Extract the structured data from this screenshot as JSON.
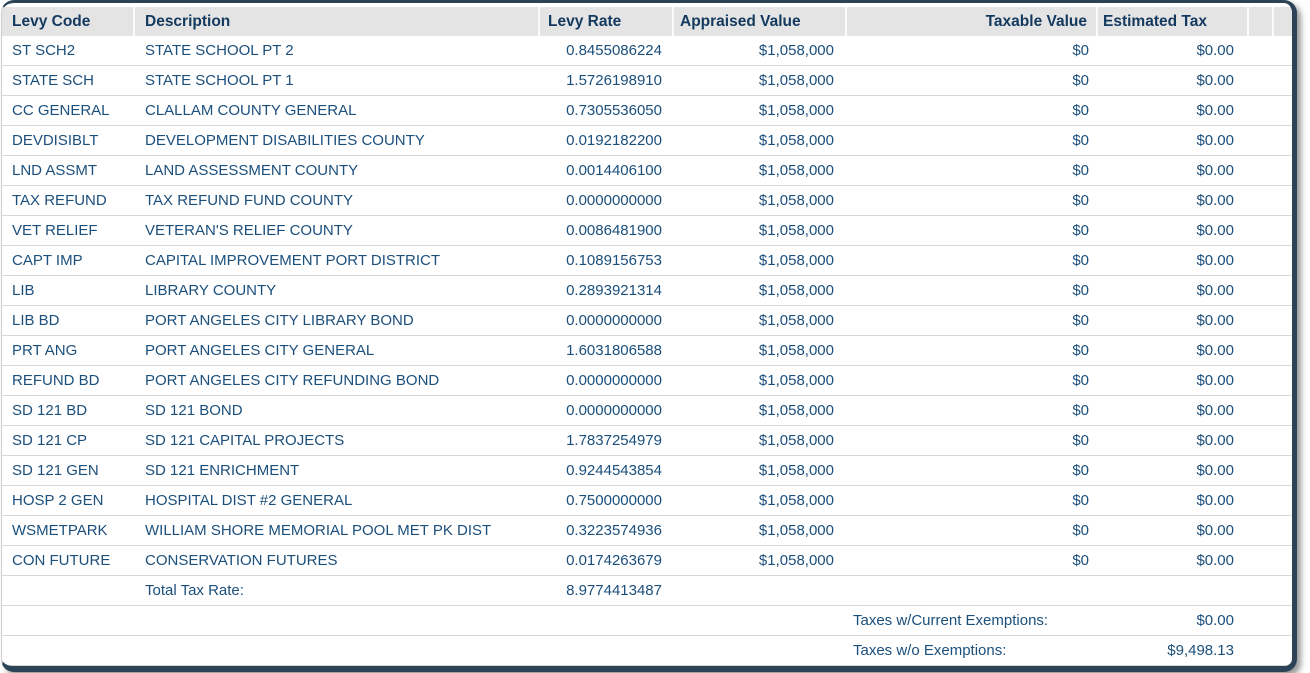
{
  "colors": {
    "panel_border": "#2c4257",
    "header_bg": "#e4e4e4",
    "header_text": "#14395f",
    "body_text": "#1b4f7c",
    "row_line": "#d8d8d8"
  },
  "table": {
    "headers": {
      "levy_code": "Levy Code",
      "description": "Description",
      "levy_rate": "Levy Rate",
      "appraised_value": "Appraised Value",
      "taxable_value": "Taxable Value",
      "estimated_tax": "Estimated Tax"
    },
    "rows": [
      {
        "code": "ST SCH2",
        "description": "STATE SCHOOL PT 2",
        "rate": "0.8455086224",
        "appraised": "$1,058,000",
        "taxable": "$0",
        "tax": "$0.00"
      },
      {
        "code": "STATE SCH",
        "description": "STATE SCHOOL PT 1",
        "rate": "1.5726198910",
        "appraised": "$1,058,000",
        "taxable": "$0",
        "tax": "$0.00"
      },
      {
        "code": "CC GENERAL",
        "description": "CLALLAM COUNTY GENERAL",
        "rate": "0.7305536050",
        "appraised": "$1,058,000",
        "taxable": "$0",
        "tax": "$0.00"
      },
      {
        "code": "DEVDISIBLT",
        "description": "DEVELOPMENT DISABILITIES COUNTY",
        "rate": "0.0192182200",
        "appraised": "$1,058,000",
        "taxable": "$0",
        "tax": "$0.00"
      },
      {
        "code": "LND ASSMT",
        "description": "LAND ASSESSMENT COUNTY",
        "rate": "0.0014406100",
        "appraised": "$1,058,000",
        "taxable": "$0",
        "tax": "$0.00"
      },
      {
        "code": "TAX REFUND",
        "description": "TAX REFUND FUND COUNTY",
        "rate": "0.0000000000",
        "appraised": "$1,058,000",
        "taxable": "$0",
        "tax": "$0.00"
      },
      {
        "code": "VET RELIEF",
        "description": "VETERAN'S RELIEF COUNTY",
        "rate": "0.0086481900",
        "appraised": "$1,058,000",
        "taxable": "$0",
        "tax": "$0.00"
      },
      {
        "code": "CAPT IMP",
        "description": "CAPITAL IMPROVEMENT PORT DISTRICT",
        "rate": "0.1089156753",
        "appraised": "$1,058,000",
        "taxable": "$0",
        "tax": "$0.00"
      },
      {
        "code": "LIB",
        "description": "LIBRARY COUNTY",
        "rate": "0.2893921314",
        "appraised": "$1,058,000",
        "taxable": "$0",
        "tax": "$0.00"
      },
      {
        "code": "LIB BD",
        "description": "PORT ANGELES CITY LIBRARY BOND",
        "rate": "0.0000000000",
        "appraised": "$1,058,000",
        "taxable": "$0",
        "tax": "$0.00"
      },
      {
        "code": "PRT ANG",
        "description": "PORT ANGELES CITY GENERAL",
        "rate": "1.6031806588",
        "appraised": "$1,058,000",
        "taxable": "$0",
        "tax": "$0.00"
      },
      {
        "code": "REFUND BD",
        "description": "PORT ANGELES CITY REFUNDING BOND",
        "rate": "0.0000000000",
        "appraised": "$1,058,000",
        "taxable": "$0",
        "tax": "$0.00"
      },
      {
        "code": "SD 121 BD",
        "description": "SD 121 BOND",
        "rate": "0.0000000000",
        "appraised": "$1,058,000",
        "taxable": "$0",
        "tax": "$0.00"
      },
      {
        "code": "SD 121 CP",
        "description": "SD 121 CAPITAL PROJECTS",
        "rate": "1.7837254979",
        "appraised": "$1,058,000",
        "taxable": "$0",
        "tax": "$0.00"
      },
      {
        "code": "SD 121 GEN",
        "description": "SD 121 ENRICHMENT",
        "rate": "0.9244543854",
        "appraised": "$1,058,000",
        "taxable": "$0",
        "tax": "$0.00"
      },
      {
        "code": "HOSP 2 GEN",
        "description": "HOSPITAL DIST #2 GENERAL",
        "rate": "0.7500000000",
        "appraised": "$1,058,000",
        "taxable": "$0",
        "tax": "$0.00"
      },
      {
        "code": "WSMETPARK",
        "description": "WILLIAM SHORE MEMORIAL POOL MET PK DIST",
        "rate": "0.3223574936",
        "appraised": "$1,058,000",
        "taxable": "$0",
        "tax": "$0.00"
      },
      {
        "code": "CON FUTURE",
        "description": "CONSERVATION FUTURES",
        "rate": "0.0174263679",
        "appraised": "$1,058,000",
        "taxable": "$0",
        "tax": "$0.00"
      }
    ],
    "total": {
      "label": "Total Tax Rate:",
      "value": "8.9774413487"
    },
    "summary": [
      {
        "label": "Taxes w/Current Exemptions:",
        "value": "$0.00"
      },
      {
        "label": "Taxes w/o Exemptions:",
        "value": "$9,498.13"
      }
    ]
  }
}
